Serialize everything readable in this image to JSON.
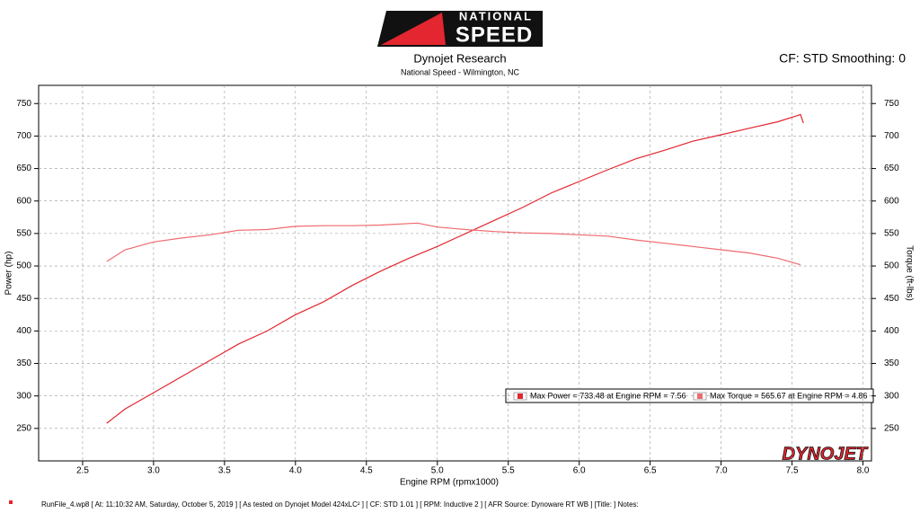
{
  "chart_data": {
    "type": "line",
    "logo": {
      "top": "NATIONAL",
      "bottom": "SPEED"
    },
    "title": "Dynojet Research",
    "subtitle": "National Speed - Wilmington, NC",
    "settings_label": "CF: STD Smoothing: 0",
    "x_label": "Engine RPM (rpmx1000)",
    "y_label": "Power (hp)",
    "y2_label": "Torque (ft-lbs)",
    "brand": "DYNOJET",
    "footer": "RunFile_4.wp8 [ At: 11:10:32 AM, Saturday, October 5, 2019 ] [ As tested on Dynojet Model 424xLC² ] [ CF: STD 1.01 ] [ RPM: Inductive 2 ] [ AFR Source: Dynoware RT WB ] [Title: ]  Notes:",
    "xlim": [
      2.19,
      8.06
    ],
    "xticks": [
      2.5,
      {
        "value": 3,
        "label": "3.0"
      },
      3.5,
      {
        "value": 4,
        "label": "4.0"
      },
      4.5,
      {
        "value": 5,
        "label": "5.0"
      },
      5.5,
      {
        "value": 6,
        "label": "6.0"
      },
      6.5,
      {
        "value": 7,
        "label": "7.0"
      },
      7.5,
      {
        "value": 8,
        "label": "8.0"
      }
    ],
    "ylim": [
      200,
      778
    ],
    "yticks": [
      250,
      300,
      350,
      400,
      450,
      500,
      550,
      600,
      650,
      700,
      750
    ],
    "y2lim": [
      200,
      778
    ],
    "y2ticks": [
      250,
      300,
      350,
      400,
      450,
      500,
      550,
      600,
      650,
      700,
      750
    ],
    "grid": true,
    "series": [
      {
        "name": "Max Power = 733.48 at Engine RPM = 7.56",
        "color": "#e3262f",
        "x": [
          2.67,
          2.8,
          3.0,
          3.2,
          3.4,
          3.6,
          3.8,
          4.0,
          4.2,
          4.4,
          4.6,
          4.8,
          5.0,
          5.2,
          5.4,
          5.6,
          5.8,
          6.0,
          6.2,
          6.4,
          6.6,
          6.8,
          7.0,
          7.2,
          7.4,
          7.56,
          7.58
        ],
        "values": [
          258,
          280,
          305,
          330,
          355,
          380,
          400,
          425,
          445,
          470,
          492,
          512,
          530,
          550,
          570,
          590,
          612,
          630,
          648,
          665,
          678,
          692,
          702,
          712,
          722,
          733,
          720
        ]
      },
      {
        "name": "Max Torque = 565.67 at Engine RPM = 4.86",
        "color": "#ef6a6f",
        "axis": "y2",
        "x": [
          2.67,
          2.8,
          3.0,
          3.2,
          3.4,
          3.6,
          3.8,
          4.0,
          4.2,
          4.4,
          4.6,
          4.86,
          5.0,
          5.2,
          5.4,
          5.6,
          5.8,
          6.0,
          6.2,
          6.4,
          6.6,
          6.8,
          7.0,
          7.2,
          7.4,
          7.56
        ],
        "values": [
          507,
          525,
          537,
          543,
          548,
          555,
          556,
          561,
          562,
          562,
          563,
          566,
          560,
          556,
          553,
          551,
          550,
          548,
          546,
          540,
          535,
          530,
          525,
          520,
          512,
          502
        ]
      }
    ]
  }
}
